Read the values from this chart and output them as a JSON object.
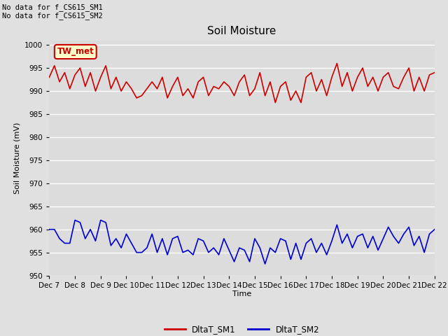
{
  "title": "Soil Moisture",
  "ylabel": "Soil Moisture (mV)",
  "xlabel": "Time",
  "ylim": [
    950,
    1001
  ],
  "yticks": [
    950,
    955,
    960,
    965,
    970,
    975,
    980,
    985,
    990,
    995,
    1000
  ],
  "fig_bg_color": "#e0e0e0",
  "plot_bg_color": "#dcdcdc",
  "grid_color": "white",
  "annotation_text": "No data for f_CS615_SM1\nNo data for f_CS615_SM2",
  "legend_label1": "DltaT_SM1",
  "legend_label2": "DltaT_SM2",
  "legend_color1": "#cc0000",
  "legend_color2": "#0000cc",
  "tw_met_label": "TW_met",
  "tw_met_bg": "#ffffcc",
  "tw_met_border": "#cc0000",
  "xticklabels": [
    "Dec 7",
    "Dec 8",
    "Dec 9",
    "Dec 10",
    "Dec 11",
    "Dec 12",
    "Dec 13",
    "Dec 14",
    "Dec 15",
    "Dec 16",
    "Dec 17",
    "Dec 18",
    "Dec 19",
    "Dec 20",
    "Dec 21",
    "Dec 22"
  ],
  "sm1_x": [
    7,
    7.2,
    7.4,
    7.6,
    7.8,
    8,
    8.2,
    8.4,
    8.6,
    8.8,
    9,
    9.2,
    9.4,
    9.6,
    9.8,
    10,
    10.2,
    10.4,
    10.6,
    10.8,
    11,
    11.2,
    11.4,
    11.6,
    11.8,
    12,
    12.2,
    12.4,
    12.6,
    12.8,
    13,
    13.2,
    13.4,
    13.6,
    13.8,
    14,
    14.2,
    14.4,
    14.6,
    14.8,
    15,
    15.2,
    15.4,
    15.6,
    15.8,
    16,
    16.2,
    16.4,
    16.6,
    16.8,
    17,
    17.2,
    17.4,
    17.6,
    17.8,
    18,
    18.2,
    18.4,
    18.6,
    18.8,
    19,
    19.2,
    19.4,
    19.6,
    19.8,
    20,
    20.2,
    20.4,
    20.6,
    20.8,
    21,
    21.2,
    21.4,
    21.6,
    21.8,
    22
  ],
  "sm1_y": [
    993,
    995.5,
    992,
    994,
    990.5,
    993.5,
    995,
    991,
    994,
    990,
    993,
    995.5,
    990.5,
    993,
    990,
    992,
    990.5,
    988.5,
    989,
    990.5,
    992,
    990.5,
    993,
    988.5,
    991,
    993,
    989,
    990.5,
    988.5,
    992,
    993,
    989,
    991,
    990.5,
    992,
    991,
    989,
    992,
    993.5,
    989,
    990.5,
    994,
    989,
    992,
    987.5,
    991,
    992,
    988,
    990,
    987.5,
    993,
    994,
    990,
    992.5,
    989,
    993,
    996,
    991,
    994,
    990,
    993,
    995,
    991,
    993,
    990,
    993,
    994,
    991,
    990.5,
    993,
    995,
    990,
    993,
    990,
    993.5,
    994
  ],
  "sm2_x": [
    7,
    7.2,
    7.4,
    7.6,
    7.8,
    8,
    8.2,
    8.4,
    8.6,
    8.8,
    9,
    9.2,
    9.4,
    9.6,
    9.8,
    10,
    10.2,
    10.4,
    10.6,
    10.8,
    11,
    11.2,
    11.4,
    11.6,
    11.8,
    12,
    12.2,
    12.4,
    12.6,
    12.8,
    13,
    13.2,
    13.4,
    13.6,
    13.8,
    14,
    14.2,
    14.4,
    14.6,
    14.8,
    15,
    15.2,
    15.4,
    15.6,
    15.8,
    16,
    16.2,
    16.4,
    16.6,
    16.8,
    17,
    17.2,
    17.4,
    17.6,
    17.8,
    18,
    18.2,
    18.4,
    18.6,
    18.8,
    19,
    19.2,
    19.4,
    19.6,
    19.8,
    20,
    20.2,
    20.4,
    20.6,
    20.8,
    21,
    21.2,
    21.4,
    21.6,
    21.8,
    22
  ],
  "sm2_y": [
    960,
    960,
    958,
    957,
    957,
    962,
    961.5,
    958,
    960,
    957.5,
    962,
    961.5,
    956.5,
    958,
    956,
    959,
    957,
    955,
    955,
    956,
    959,
    955,
    958,
    954.5,
    958,
    958.5,
    955,
    955.5,
    954.5,
    958,
    957.5,
    955,
    956,
    954.5,
    958,
    955.5,
    953,
    956,
    955.5,
    953,
    958,
    956,
    952.5,
    956,
    955,
    958,
    957.5,
    953.5,
    957,
    953.5,
    957,
    958,
    955,
    957,
    954.5,
    957.5,
    961,
    957,
    959,
    956,
    958.5,
    959,
    956,
    958.5,
    955.5,
    958,
    960.5,
    958.5,
    957,
    959,
    960.5,
    956.5,
    958.5,
    955,
    959,
    960
  ]
}
